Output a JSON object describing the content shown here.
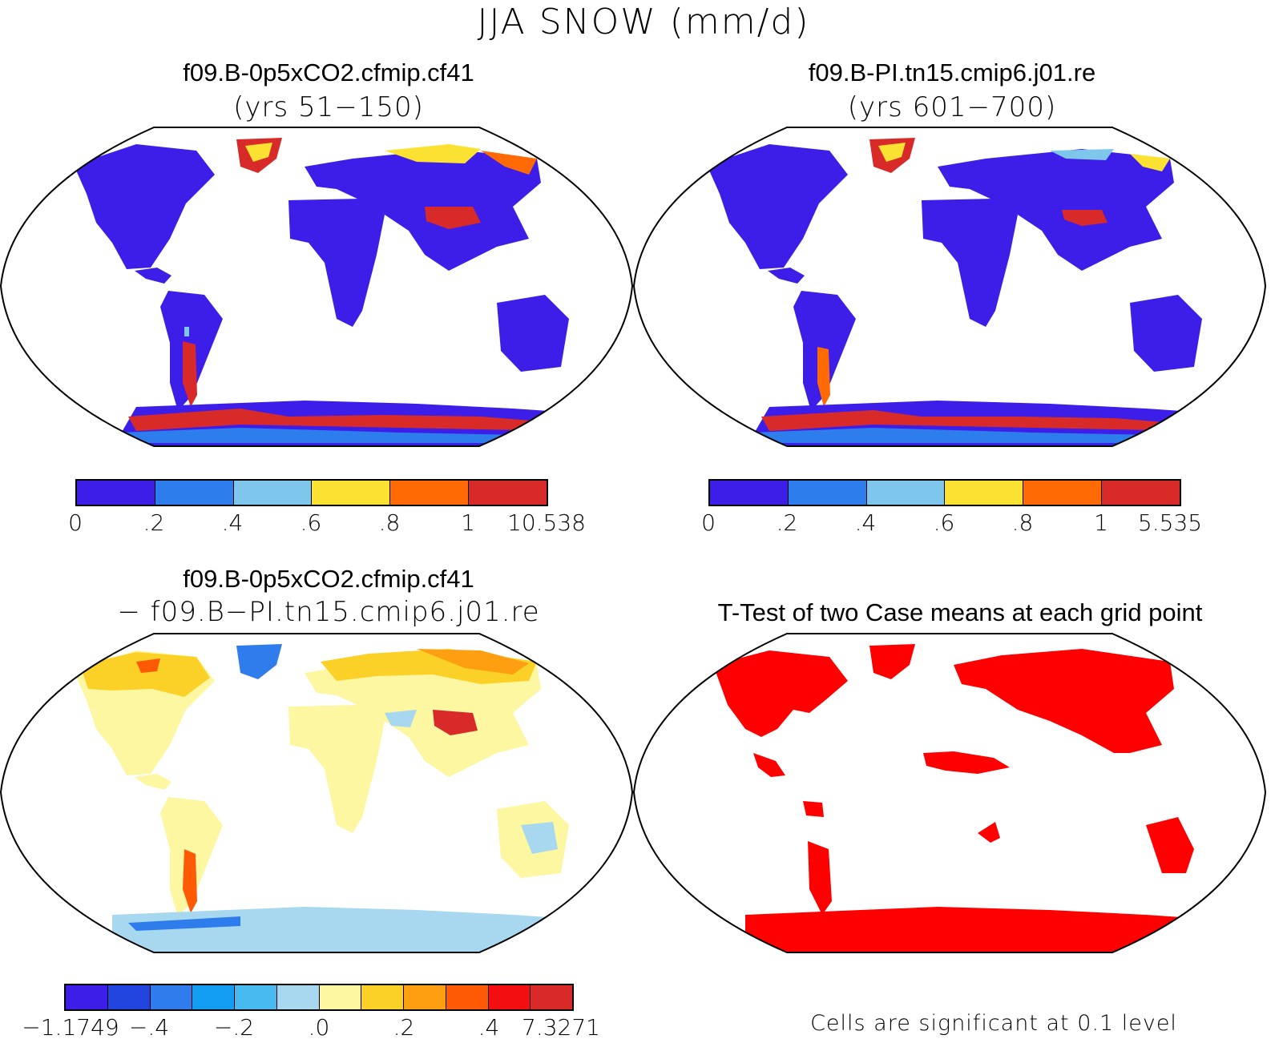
{
  "page_title": "JJA SNOW (mm/d)",
  "panels": {
    "top_left": {
      "title": "f09.B-0p5xCO2.cfmip.cf41",
      "subtitle": "(yrs 51−150)",
      "colorbar": {
        "colors": [
          "#3d1ee8",
          "#2e7ded",
          "#7fc6ec",
          "#fbe232",
          "#ff6a05",
          "#d92a2a"
        ],
        "ticks": [
          "0",
          ".2",
          ".4",
          ".6",
          ".8",
          "1",
          "10.538"
        ]
      }
    },
    "top_right": {
      "title": "f09.B-PI.tn15.cmip6.j01.re",
      "subtitle": "(yrs 601−700)",
      "colorbar": {
        "colors": [
          "#3d1ee8",
          "#2e7ded",
          "#7fc6ec",
          "#fbe232",
          "#ff6a05",
          "#d92a2a"
        ],
        "ticks": [
          "0",
          ".2",
          ".4",
          ".6",
          ".8",
          "1",
          "5.535"
        ]
      }
    },
    "bottom_left": {
      "title": "f09.B-0p5xCO2.cfmip.cf41",
      "subtitle": "− f09.B−PI.tn15.cmip6.j01.re",
      "colorbar": {
        "colors": [
          "#3d1ee8",
          "#2244de",
          "#2f7ded",
          "#129df3",
          "#48baf0",
          "#a8d8ef",
          "#fcf7a0",
          "#fcd127",
          "#fd9f10",
          "#fe5a06",
          "#f30f0f",
          "#d92a2a"
        ],
        "ticks": [
          "−1.1749",
          "−.4",
          "−.2",
          ".0",
          ".2",
          ".4",
          "7.3271"
        ]
      }
    },
    "bottom_right": {
      "title": "T-Test of two Case means at each grid point",
      "footer": "Cells are significant at 0.1 level",
      "significance_color": "#ff0000"
    }
  }
}
